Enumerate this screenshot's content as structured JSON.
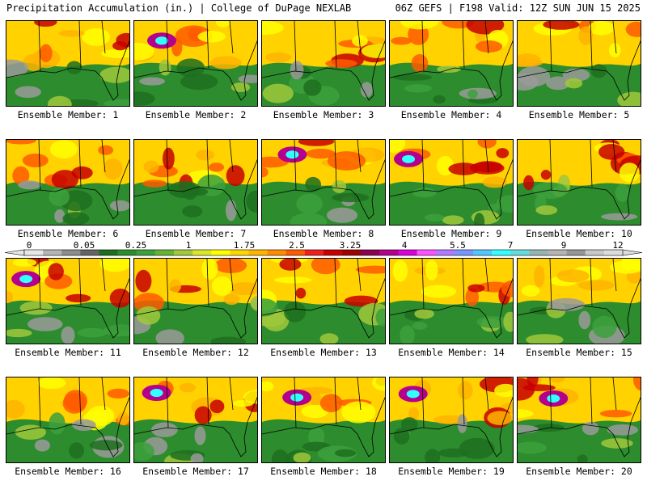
{
  "header": {
    "left": "Precipitation Accumulation (in.) | College of DuPage NEXLAB",
    "right": "06Z GEFS | F198 Valid: 12Z SUN JUN 15 2025"
  },
  "members": [
    "Ensemble Member: 1",
    "Ensemble Member: 2",
    "Ensemble Member: 3",
    "Ensemble Member: 4",
    "Ensemble Member: 5",
    "Ensemble Member: 6",
    "Ensemble Member: 7",
    "Ensemble Member: 8",
    "Ensemble Member: 9",
    "Ensemble Member: 10",
    "Ensemble Member: 11",
    "Ensemble Member: 12",
    "Ensemble Member: 13",
    "Ensemble Member: 14",
    "Ensemble Member: 15",
    "Ensemble Member: 16",
    "Ensemble Member: 17",
    "Ensemble Member: 18",
    "Ensemble Member: 19",
    "Ensemble Member: 20"
  ],
  "colorbar": {
    "tick_labels": [
      "0",
      "0.05",
      "0.25",
      "1",
      "1.75",
      "2.5",
      "3.25",
      "4",
      "5.5",
      "7",
      "9",
      "12"
    ],
    "colors": [
      "#e6e6e6",
      "#b4b4b4",
      "#8c8c8c",
      "#646464",
      "#1e6e1e",
      "#2d8c2d",
      "#3ca03c",
      "#64b432",
      "#a0c83c",
      "#dce628",
      "#ffff00",
      "#ffd700",
      "#ffb400",
      "#ff8c00",
      "#ff5a00",
      "#f01e1e",
      "#c80000",
      "#a00000",
      "#8c0050",
      "#b4008c",
      "#dc00dc",
      "#ff50ff",
      "#b478ff",
      "#7896ff",
      "#50c8ff",
      "#32ffff",
      "#64dcdc",
      "#96b4b4",
      "#b4b4b4",
      "#969696",
      "#c8c8c8",
      "#dcdcdc"
    ]
  }
}
